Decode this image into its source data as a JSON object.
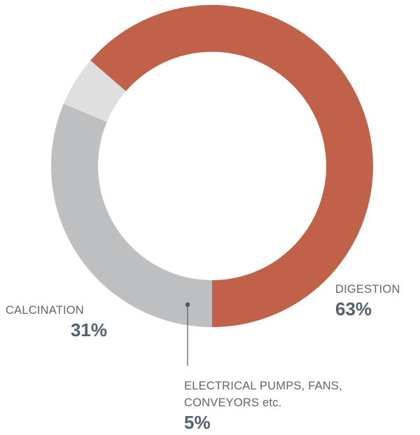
{
  "chart_data": {
    "type": "pie",
    "variant": "donut",
    "title": "",
    "slices": [
      {
        "label": "DIGESTION",
        "value": 63,
        "value_label": "63%",
        "color": "#c0614a"
      },
      {
        "label": "ELECTRICAL PUMPS, FANS, CONVEYORS etc.",
        "value": 5,
        "value_label": "5%",
        "color": "#dfdfdf"
      },
      {
        "label": "CALCINATION",
        "value": 31,
        "value_label": "31%",
        "color": "#bebfc1"
      }
    ],
    "start_angle_deg": 180,
    "direction": "counter-clockwise-from-bottom",
    "legend": "none",
    "callout_line_color": "#4f5964"
  }
}
